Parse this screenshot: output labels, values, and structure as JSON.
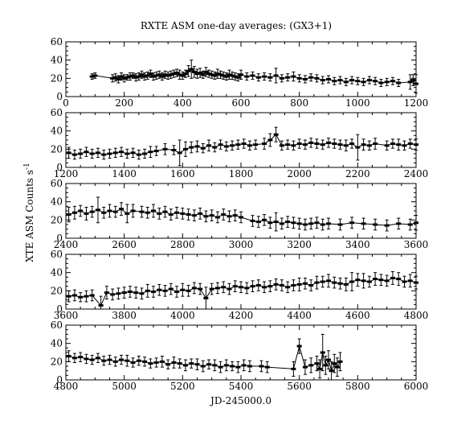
{
  "chart_data": {
    "type": "line",
    "title": "RXTE ASM one-day averages: (GX3+1)",
    "xlabel": "JD-245000.0",
    "ylabel": "XTE ASM Counts s",
    "ylabel_superscript": "-1",
    "ylim": [
      0,
      60
    ],
    "yticks": [
      0,
      20,
      40,
      60
    ],
    "panels": [
      {
        "xlim": [
          0,
          1200
        ],
        "xticks": [
          0,
          200,
          400,
          600,
          800,
          1000,
          1200
        ],
        "x": [
          90,
          100,
          160,
          170,
          180,
          190,
          200,
          210,
          220,
          230,
          240,
          250,
          260,
          270,
          280,
          290,
          300,
          310,
          320,
          330,
          340,
          350,
          360,
          370,
          380,
          390,
          400,
          410,
          420,
          430,
          440,
          450,
          460,
          470,
          480,
          490,
          500,
          510,
          520,
          530,
          540,
          550,
          560,
          570,
          580,
          590,
          600,
          620,
          640,
          660,
          680,
          700,
          720,
          740,
          760,
          780,
          800,
          820,
          840,
          860,
          880,
          900,
          920,
          940,
          960,
          980,
          1000,
          1020,
          1040,
          1060,
          1080,
          1100,
          1120,
          1140,
          1180,
          1190,
          1200
        ],
        "y": [
          22,
          23,
          20,
          21,
          19,
          22,
          20,
          21,
          22,
          23,
          21,
          22,
          24,
          22,
          23,
          25,
          22,
          23,
          24,
          22,
          24,
          23,
          24,
          25,
          26,
          24,
          23,
          25,
          28,
          30,
          27,
          25,
          26,
          24,
          27,
          25,
          24,
          23,
          25,
          24,
          23,
          22,
          24,
          23,
          22,
          21,
          24,
          22,
          23,
          21,
          22,
          21,
          23,
          20,
          21,
          22,
          20,
          19,
          21,
          20,
          18,
          19,
          17,
          18,
          16,
          18,
          17,
          16,
          18,
          17,
          15,
          16,
          17,
          15,
          16,
          18,
          14
        ],
        "yerr": [
          3,
          3,
          4,
          4,
          4,
          4,
          4,
          3,
          4,
          3,
          4,
          4,
          4,
          4,
          4,
          4,
          4,
          4,
          4,
          4,
          4,
          4,
          4,
          4,
          4,
          5,
          4,
          4,
          6,
          10,
          6,
          5,
          5,
          4,
          5,
          4,
          4,
          4,
          5,
          4,
          4,
          4,
          5,
          4,
          4,
          4,
          5,
          4,
          4,
          4,
          4,
          4,
          8,
          4,
          4,
          5,
          4,
          4,
          4,
          4,
          4,
          4,
          4,
          4,
          4,
          4,
          4,
          4,
          4,
          4,
          4,
          4,
          4,
          4,
          8,
          6,
          10
        ]
      },
      {
        "xlim": [
          1200,
          2400
        ],
        "xticks": [
          1200,
          1400,
          1600,
          1800,
          2000,
          2200,
          2400
        ],
        "x": [
          1210,
          1230,
          1250,
          1270,
          1290,
          1310,
          1330,
          1350,
          1370,
          1390,
          1410,
          1430,
          1450,
          1470,
          1490,
          1510,
          1540,
          1570,
          1590,
          1610,
          1630,
          1650,
          1670,
          1690,
          1710,
          1730,
          1750,
          1770,
          1790,
          1810,
          1830,
          1850,
          1880,
          1900,
          1920,
          1940,
          1960,
          1980,
          2000,
          2020,
          2040,
          2060,
          2080,
          2100,
          2120,
          2140,
          2160,
          2180,
          2200,
          2220,
          2240,
          2260,
          2300,
          2320,
          2340,
          2360,
          2380,
          2400
        ],
        "y": [
          16,
          14,
          15,
          17,
          15,
          16,
          14,
          15,
          16,
          17,
          15,
          16,
          14,
          15,
          17,
          18,
          20,
          19,
          16,
          20,
          22,
          23,
          21,
          24,
          22,
          25,
          23,
          24,
          25,
          26,
          24,
          25,
          26,
          30,
          36,
          24,
          25,
          24,
          26,
          25,
          27,
          26,
          25,
          27,
          26,
          25,
          24,
          26,
          22,
          25,
          24,
          26,
          24,
          26,
          25,
          24,
          26,
          25
        ],
        "yerr": [
          6,
          5,
          5,
          5,
          5,
          5,
          5,
          5,
          5,
          5,
          5,
          5,
          5,
          5,
          6,
          5,
          6,
          5,
          14,
          8,
          6,
          6,
          5,
          6,
          5,
          5,
          5,
          5,
          5,
          5,
          5,
          5,
          6,
          7,
          8,
          5,
          5,
          5,
          5,
          5,
          5,
          5,
          5,
          5,
          5,
          5,
          6,
          5,
          14,
          6,
          5,
          6,
          5,
          5,
          6,
          5,
          5,
          6
        ]
      },
      {
        "xlim": [
          2400,
          3600
        ],
        "xticks": [
          2400,
          2600,
          2800,
          3000,
          3200,
          3400,
          3600
        ],
        "x": [
          2410,
          2430,
          2450,
          2470,
          2490,
          2510,
          2530,
          2550,
          2570,
          2590,
          2610,
          2630,
          2660,
          2680,
          2700,
          2720,
          2740,
          2760,
          2780,
          2800,
          2820,
          2840,
          2860,
          2880,
          2900,
          2920,
          2940,
          2960,
          2980,
          3000,
          3040,
          3060,
          3080,
          3100,
          3120,
          3140,
          3160,
          3180,
          3200,
          3220,
          3240,
          3260,
          3280,
          3300,
          3340,
          3380,
          3420,
          3460,
          3500,
          3540,
          3580,
          3600
        ],
        "y": [
          26,
          28,
          30,
          27,
          29,
          31,
          28,
          30,
          29,
          32,
          27,
          30,
          29,
          28,
          30,
          27,
          29,
          26,
          28,
          27,
          26,
          25,
          27,
          24,
          25,
          23,
          26,
          24,
          25,
          23,
          19,
          18,
          20,
          17,
          18,
          16,
          18,
          17,
          16,
          15,
          16,
          17,
          15,
          16,
          15,
          17,
          16,
          15,
          14,
          16,
          15,
          17
        ],
        "yerr": [
          8,
          7,
          6,
          7,
          6,
          14,
          6,
          7,
          6,
          7,
          10,
          7,
          6,
          6,
          7,
          6,
          6,
          6,
          6,
          6,
          6,
          6,
          6,
          6,
          6,
          6,
          6,
          6,
          6,
          6,
          6,
          6,
          6,
          6,
          10,
          6,
          6,
          6,
          6,
          6,
          6,
          6,
          6,
          6,
          6,
          6,
          6,
          6,
          6,
          6,
          6,
          8
        ]
      },
      {
        "xlim": [
          3600,
          4800
        ],
        "xticks": [
          3600,
          3800,
          4000,
          4200,
          4400,
          4600,
          4800
        ],
        "x": [
          3610,
          3630,
          3650,
          3670,
          3690,
          3720,
          3740,
          3760,
          3780,
          3800,
          3820,
          3840,
          3860,
          3880,
          3900,
          3920,
          3940,
          3960,
          3980,
          4000,
          4020,
          4040,
          4060,
          4080,
          4100,
          4120,
          4140,
          4160,
          4180,
          4200,
          4220,
          4240,
          4260,
          4280,
          4300,
          4320,
          4340,
          4360,
          4380,
          4400,
          4420,
          4440,
          4460,
          4480,
          4500,
          4520,
          4540,
          4560,
          4580,
          4600,
          4620,
          4640,
          4660,
          4680,
          4700,
          4720,
          4740,
          4760,
          4780,
          4800
        ],
        "y": [
          14,
          15,
          13,
          14,
          15,
          4,
          18,
          16,
          17,
          18,
          19,
          18,
          17,
          20,
          19,
          21,
          20,
          22,
          19,
          21,
          20,
          23,
          22,
          12,
          22,
          23,
          24,
          22,
          25,
          24,
          23,
          25,
          26,
          24,
          25,
          27,
          26,
          24,
          26,
          27,
          28,
          26,
          29,
          30,
          31,
          29,
          28,
          27,
          30,
          32,
          31,
          30,
          33,
          32,
          31,
          34,
          33,
          30,
          31,
          29
        ],
        "yerr": [
          6,
          6,
          5,
          6,
          6,
          10,
          7,
          6,
          6,
          6,
          6,
          6,
          6,
          7,
          6,
          6,
          6,
          6,
          6,
          7,
          6,
          6,
          6,
          12,
          6,
          6,
          6,
          6,
          6,
          6,
          6,
          6,
          6,
          6,
          6,
          6,
          6,
          6,
          6,
          7,
          6,
          6,
          7,
          6,
          7,
          6,
          6,
          7,
          10,
          7,
          8,
          6,
          7,
          6,
          6,
          7,
          7,
          6,
          7,
          7
        ]
      },
      {
        "xlim": [
          4800,
          6000
        ],
        "xticks": [
          4800,
          5000,
          5200,
          5400,
          5600,
          5800,
          6000
        ],
        "x": [
          4810,
          4830,
          4850,
          4870,
          4890,
          4910,
          4930,
          4950,
          4970,
          4990,
          5010,
          5030,
          5050,
          5070,
          5090,
          5110,
          5130,
          5150,
          5170,
          5190,
          5210,
          5230,
          5250,
          5270,
          5290,
          5310,
          5330,
          5350,
          5370,
          5390,
          5410,
          5430,
          5470,
          5490,
          5580,
          5600,
          5620,
          5640,
          5660,
          5670,
          5680,
          5690,
          5700,
          5710,
          5720,
          5730,
          5740
        ],
        "y": [
          26,
          24,
          25,
          23,
          22,
          24,
          21,
          22,
          20,
          22,
          21,
          19,
          21,
          20,
          18,
          19,
          20,
          17,
          19,
          18,
          16,
          18,
          17,
          15,
          17,
          16,
          14,
          16,
          15,
          14,
          16,
          15,
          15,
          14,
          12,
          37,
          14,
          16,
          18,
          12,
          30,
          16,
          22,
          10,
          18,
          14,
          20
        ],
        "yerr": [
          6,
          5,
          5,
          5,
          5,
          5,
          5,
          5,
          5,
          5,
          6,
          5,
          5,
          5,
          5,
          5,
          6,
          5,
          6,
          5,
          6,
          5,
          6,
          6,
          5,
          6,
          6,
          6,
          5,
          6,
          6,
          6,
          6,
          6,
          8,
          8,
          8,
          8,
          8,
          10,
          20,
          10,
          10,
          10,
          10,
          10,
          10
        ]
      }
    ]
  }
}
